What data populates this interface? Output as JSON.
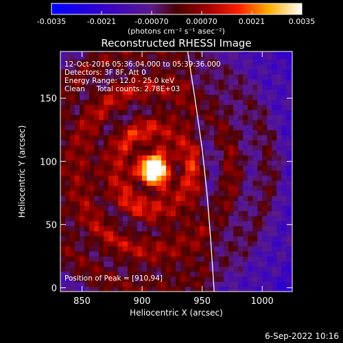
{
  "chart_data": {
    "type": "heatmap",
    "title": "Reconstructed RHESSI Image",
    "xlabel": "Heliocentric X (arcsec)",
    "ylabel": "Heliocentric Y (arcsec)",
    "xlim": [
      832,
      1025
    ],
    "ylim": [
      -3,
      187
    ],
    "x_ticks": [
      850,
      900,
      950,
      1000
    ],
    "y_ticks": [
      0,
      50,
      100,
      150
    ],
    "colorbar": {
      "range": [
        -0.0035,
        0.0035
      ],
      "tick_values": [
        -0.0035,
        -0.0021,
        -0.0007,
        0.0007,
        0.0021,
        0.0035
      ],
      "tick_labels": [
        "-0.0035",
        "-0.0021",
        "-0.00070",
        "0.00070",
        "0.0021",
        "0.0035"
      ],
      "unit_label": "(photons cm⁻² s⁻¹ asec⁻²)"
    },
    "annotations": [
      "12-Oct-2016 05:36:04.000 to 05:39:36.000",
      "Detectors: 3F 8F, Att 0",
      "Energy Range: 12.0 - 25.0 keV",
      "Clean     Total counts: 2.78E+03"
    ],
    "peak": {
      "label": "Position of Peak = [910,94]",
      "x": 910,
      "y": 94
    },
    "limb_curve": [
      [
        938,
        187
      ],
      [
        944,
        150
      ],
      [
        950,
        110
      ],
      [
        954,
        75
      ],
      [
        957,
        40
      ],
      [
        960,
        -3
      ]
    ],
    "grid": false,
    "legend": "none"
  },
  "footer": {
    "timestamp": "6-Sep-2022 10:16"
  }
}
